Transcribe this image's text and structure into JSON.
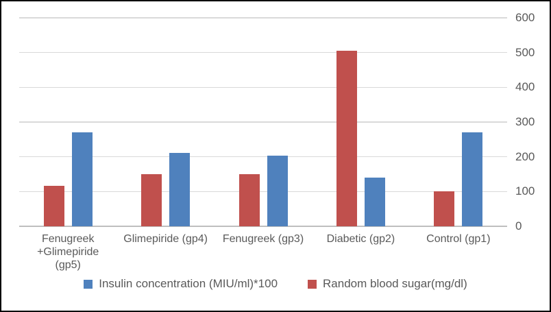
{
  "chart_data": {
    "type": "bar",
    "title": "",
    "categories": [
      "Fenugreek +Glimepiride (gp5)",
      "Glimepiride (gp4)",
      "Fenugreek (gp3)",
      "Diabetic (gp2)",
      "Control (gp1)"
    ],
    "series": [
      {
        "name": "Insulin concentration (MIU/ml)*100",
        "color": "#4F81BD",
        "values": [
          270,
          212,
          204,
          141,
          270
        ]
      },
      {
        "name": "Random blood sugar(mg/dl)",
        "color": "#C0504D",
        "values": [
          116,
          150,
          151,
          505,
          100
        ]
      }
    ],
    "group_bar_order": [
      1,
      0
    ],
    "ylim": [
      0,
      600
    ],
    "yticks": [
      0,
      100,
      200,
      300,
      400,
      500,
      600
    ],
    "xlabel": "",
    "ylabel": "",
    "grid": true,
    "axis_side": "right",
    "legend_position": "bottom"
  },
  "styles": {
    "background": "#FFFFFF",
    "frame_border": "#000000",
    "gridline_color": "#D9D9D9",
    "axis_line_color": "#BEBEBE",
    "text_color": "#595959"
  }
}
